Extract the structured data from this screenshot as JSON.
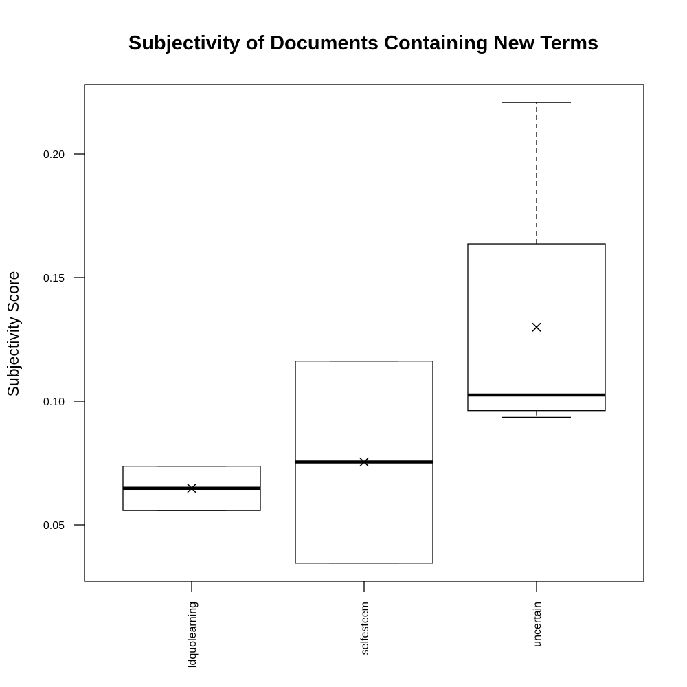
{
  "chart_data": {
    "type": "boxplot",
    "title": "Subjectivity of Documents Containing New Terms",
    "xlabel": "",
    "ylabel": "Subjectivity Score",
    "categories": [
      "ldquolearning",
      "selfesteem",
      "uncertain"
    ],
    "boxes": [
      {
        "category": "ldquolearning",
        "whisker_low": 0.0558,
        "q1": 0.0558,
        "median": 0.0648,
        "q3": 0.0737,
        "whisker_high": 0.0737,
        "mean": 0.0648
      },
      {
        "category": "selfesteem",
        "whisker_low": 0.0345,
        "q1": 0.0345,
        "median": 0.0754,
        "q3": 0.1162,
        "whisker_high": 0.1162,
        "mean": 0.0754
      },
      {
        "category": "uncertain",
        "whisker_low": 0.0935,
        "q1": 0.0962,
        "median": 0.1025,
        "q3": 0.1636,
        "whisker_high": 0.2208,
        "mean": 0.1299
      }
    ],
    "y_ticks": [
      0.05,
      0.1,
      0.15,
      0.2
    ],
    "y_tick_labels": [
      "0.05",
      "0.10",
      "0.15",
      "0.20"
    ],
    "ylim": [
      0.027,
      0.228
    ],
    "mean_marker": "×",
    "grid": false,
    "legend": "none"
  }
}
